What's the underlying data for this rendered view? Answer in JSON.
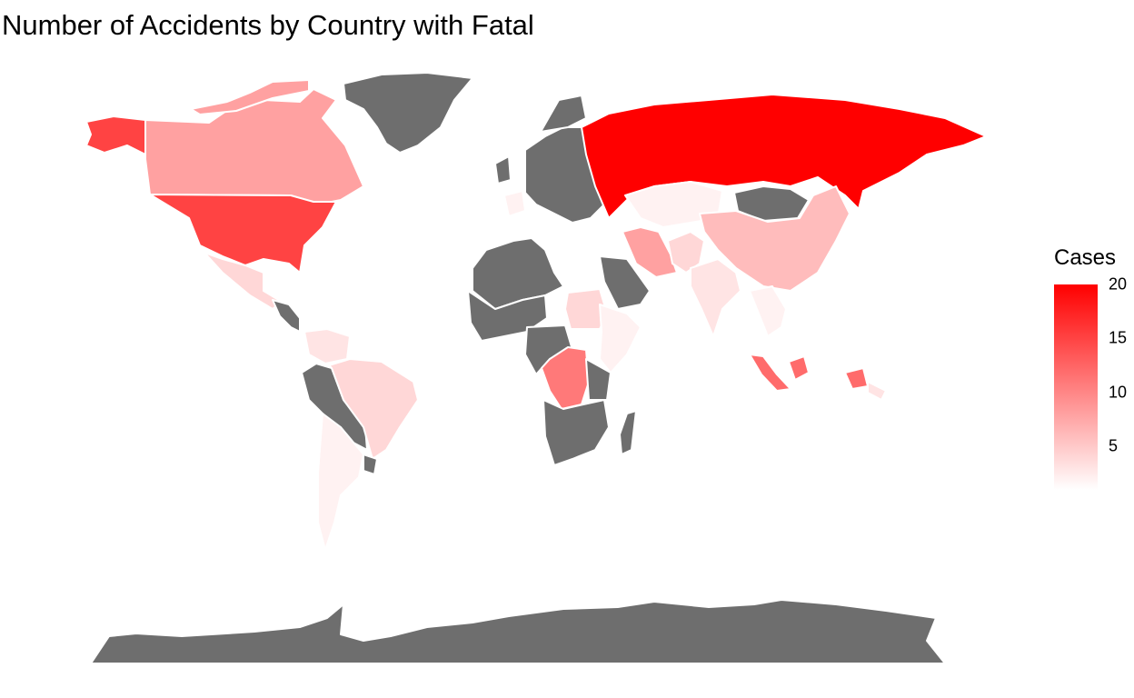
{
  "title": "Number of Accidents by Country with Fatal",
  "legend": {
    "title": "Cases",
    "min": 1,
    "max": 20,
    "low_color": "#ffffff",
    "high_color": "#ff0000",
    "ticks": [
      {
        "value": 20,
        "label": "20"
      },
      {
        "value": 15,
        "label": "15"
      },
      {
        "value": 10,
        "label": "10"
      },
      {
        "value": 5,
        "label": "5"
      }
    ]
  },
  "no_data_color": "#6e6e6e",
  "border_color": "#ffffff",
  "regions": [
    {
      "id": "alaska",
      "value": 15
    },
    {
      "id": "canada",
      "value": 8
    },
    {
      "id": "greenland",
      "value": null
    },
    {
      "id": "usa",
      "value": 15
    },
    {
      "id": "mexico",
      "value": 4
    },
    {
      "id": "central-america",
      "value": null
    },
    {
      "id": "colombia-venezuela",
      "value": 3
    },
    {
      "id": "peru-bolivia",
      "value": null
    },
    {
      "id": "brazil",
      "value": 4
    },
    {
      "id": "argentina-chile",
      "value": 2
    },
    {
      "id": "uruguay",
      "value": null
    },
    {
      "id": "western-europe",
      "value": 2
    },
    {
      "id": "europe",
      "value": null
    },
    {
      "id": "russia",
      "value": 20
    },
    {
      "id": "kazakhstan",
      "value": 2
    },
    {
      "id": "mongolia",
      "value": null
    },
    {
      "id": "china",
      "value": 6
    },
    {
      "id": "iran",
      "value": 8
    },
    {
      "id": "pakistan-afghanistan",
      "value": 4
    },
    {
      "id": "india",
      "value": 3
    },
    {
      "id": "southeast-asia",
      "value": 2
    },
    {
      "id": "indonesia-sumatra",
      "value": 12
    },
    {
      "id": "indonesia-east",
      "value": 12
    },
    {
      "id": "png",
      "value": 3
    },
    {
      "id": "north-africa",
      "value": null
    },
    {
      "id": "west-africa",
      "value": null
    },
    {
      "id": "sudan",
      "value": 4
    },
    {
      "id": "horn-of-africa",
      "value": 2
    },
    {
      "id": "drc",
      "value": 11
    },
    {
      "id": "southern-africa",
      "value": null
    },
    {
      "id": "arabia",
      "value": null
    },
    {
      "id": "madagascar",
      "value": null
    },
    {
      "id": "antarctica",
      "value": null
    }
  ]
}
